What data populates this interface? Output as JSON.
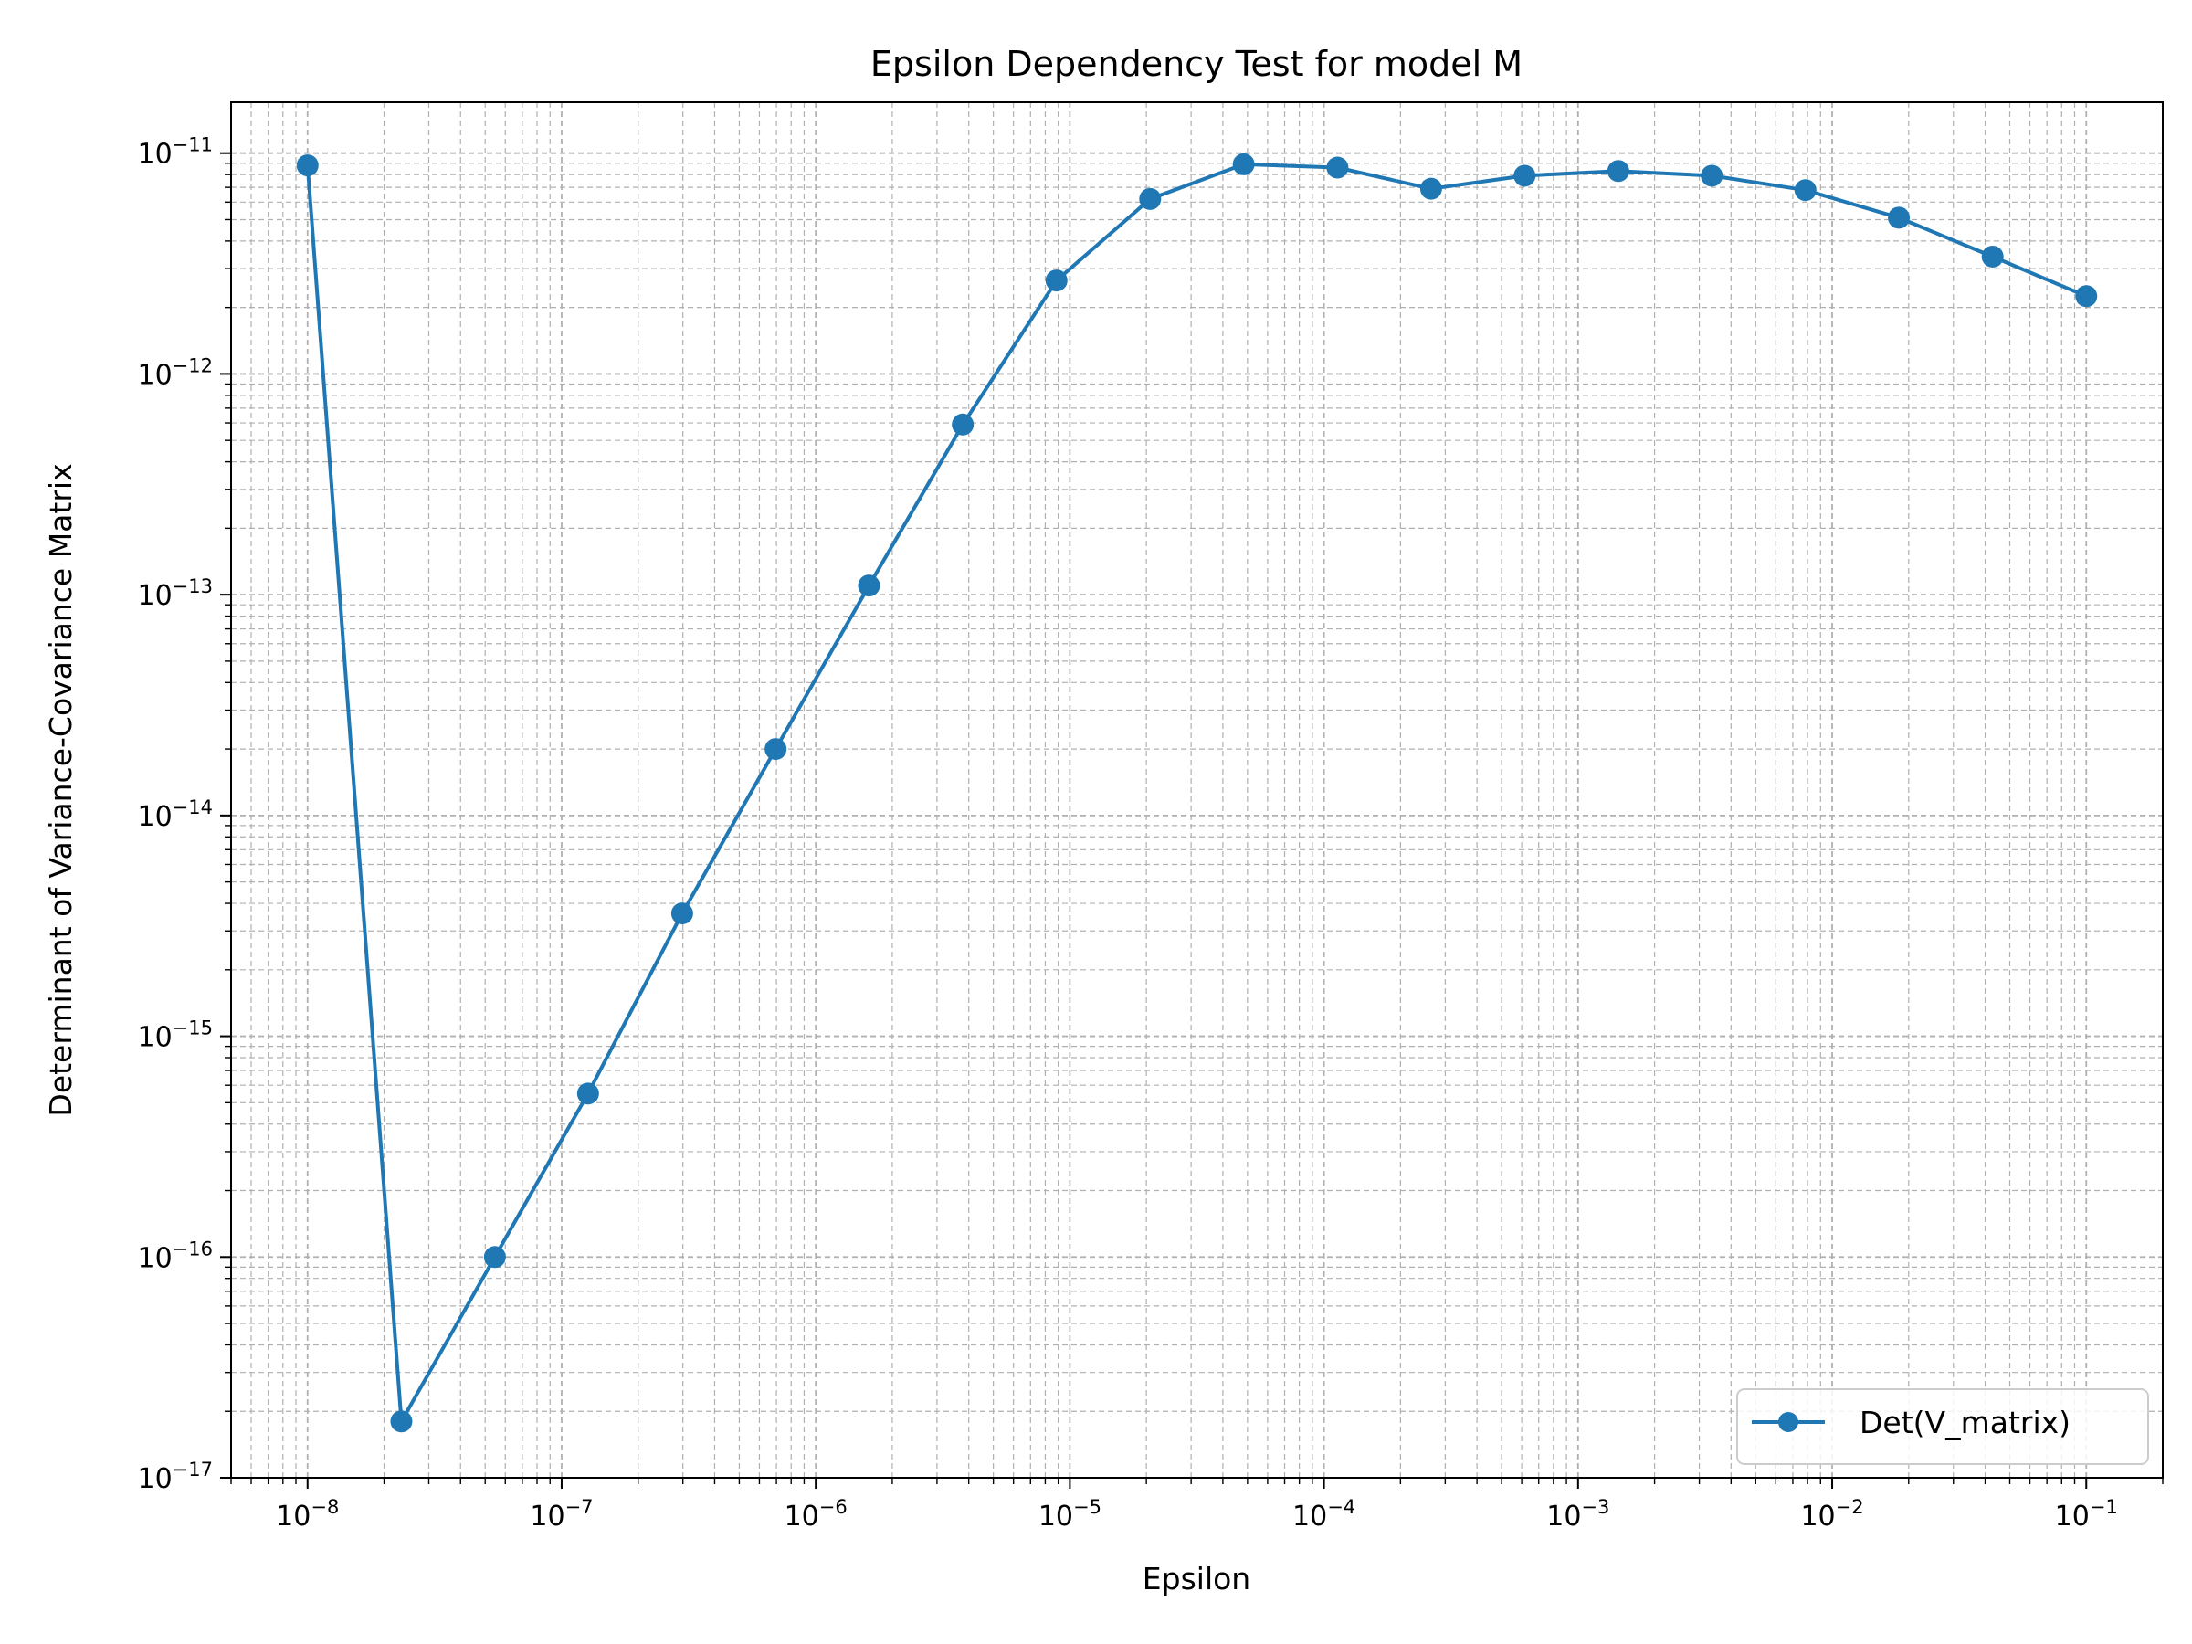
{
  "chart_data": {
    "type": "line",
    "title": "Epsilon Dependency Test for model M",
    "xlabel": "Epsilon",
    "ylabel": "Determinant of Variance-Covariance Matrix",
    "xscale": "log",
    "yscale": "log",
    "xlim": [
      5e-09,
      0.2
    ],
    "ylim": [
      1e-17,
      1.7e-11
    ],
    "grid": true,
    "grid_which": "both",
    "legend_position": "lower-right",
    "x_ticks": [
      {
        "value": 1e-08,
        "base": "10",
        "exp": "−8"
      },
      {
        "value": 1e-07,
        "base": "10",
        "exp": "−7"
      },
      {
        "value": 1e-06,
        "base": "10",
        "exp": "−6"
      },
      {
        "value": 1e-05,
        "base": "10",
        "exp": "−5"
      },
      {
        "value": 0.0001,
        "base": "10",
        "exp": "−4"
      },
      {
        "value": 0.001,
        "base": "10",
        "exp": "−3"
      },
      {
        "value": 0.01,
        "base": "10",
        "exp": "−2"
      },
      {
        "value": 0.1,
        "base": "10",
        "exp": "−1"
      }
    ],
    "y_ticks": [
      {
        "value": 1e-17,
        "base": "10",
        "exp": "−17"
      },
      {
        "value": 1e-16,
        "base": "10",
        "exp": "−16"
      },
      {
        "value": 1e-15,
        "base": "10",
        "exp": "−15"
      },
      {
        "value": 1e-14,
        "base": "10",
        "exp": "−14"
      },
      {
        "value": 1e-13,
        "base": "10",
        "exp": "−13"
      },
      {
        "value": 1e-12,
        "base": "10",
        "exp": "−12"
      },
      {
        "value": 1e-11,
        "base": "10",
        "exp": "−11"
      }
    ],
    "series": [
      {
        "name": "Det(V_matrix)",
        "color": "#1f77b4",
        "marker": "circle",
        "x": [
          1e-08,
          2.34e-08,
          5.46e-08,
          1.27e-07,
          2.98e-07,
          6.95e-07,
          1.62e-06,
          3.79e-06,
          8.86e-06,
          2.07e-05,
          4.83e-05,
          0.000113,
          0.000264,
          0.000616,
          0.00144,
          0.00336,
          0.00785,
          0.0183,
          0.0428,
          0.1
        ],
        "y": [
          8.8e-12,
          1.8e-17,
          1e-16,
          5.5e-16,
          3.6e-15,
          2e-14,
          1.1e-13,
          5.9e-13,
          2.65e-12,
          6.2e-12,
          8.9e-12,
          8.6e-12,
          6.9e-12,
          7.9e-12,
          8.3e-12,
          7.9e-12,
          6.8e-12,
          5.1e-12,
          3.4e-12,
          2.25e-12
        ]
      }
    ]
  }
}
